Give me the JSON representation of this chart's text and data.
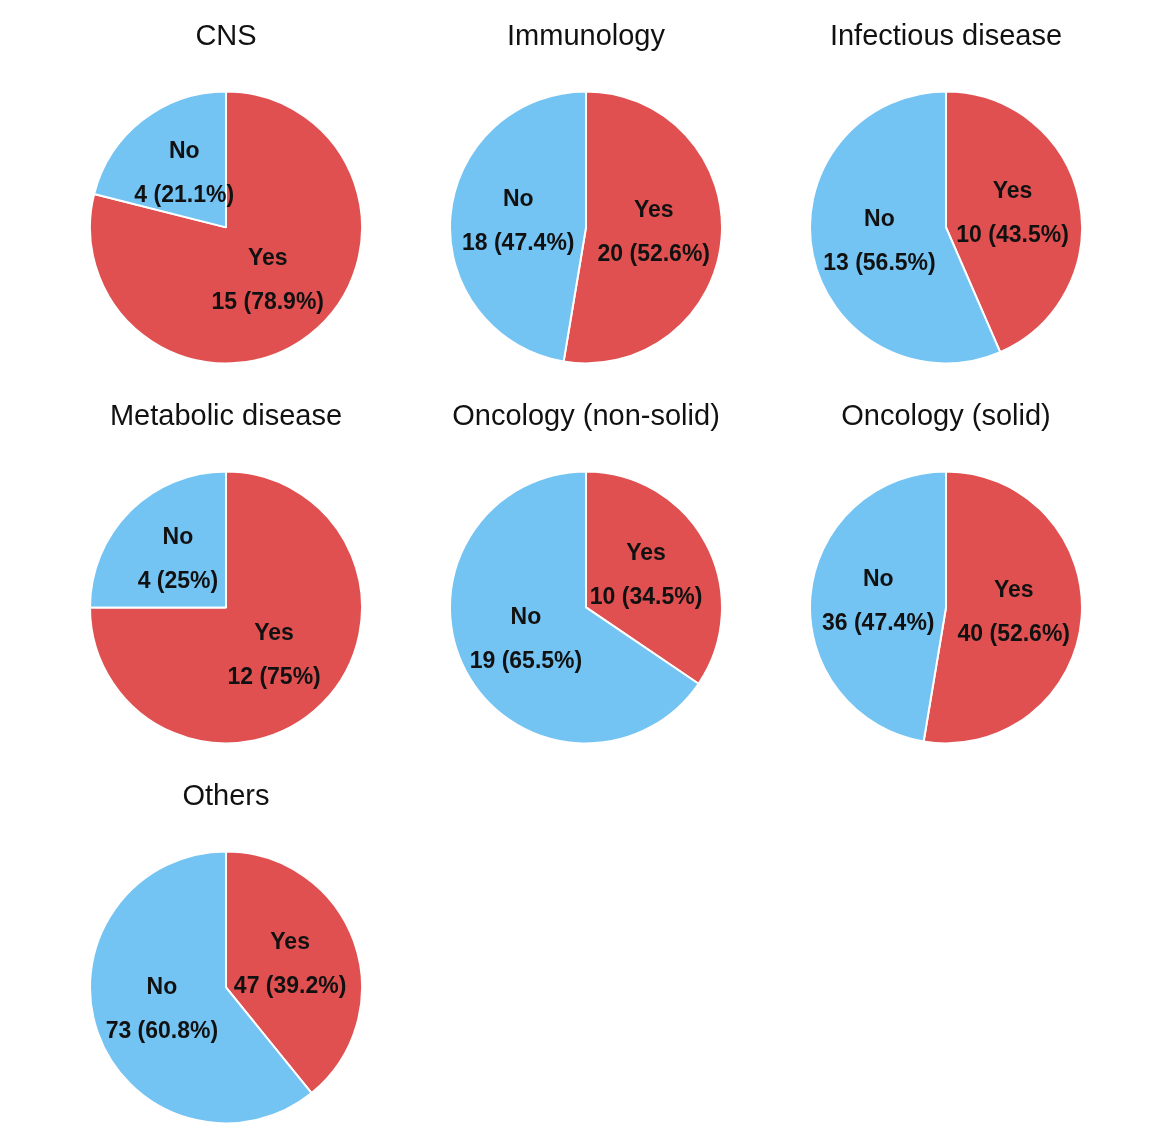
{
  "chart_data": [
    {
      "type": "pie",
      "title": "CNS",
      "categories": [
        "Yes",
        "No"
      ],
      "values": [
        15,
        4
      ],
      "value_labels": [
        "15 (78.9%)",
        "4 (21.1%)"
      ],
      "colors": [
        "#e05050",
        "#73c3f3"
      ]
    },
    {
      "type": "pie",
      "title": "Immunology",
      "categories": [
        "Yes",
        "No"
      ],
      "values": [
        20,
        18
      ],
      "value_labels": [
        "20 (52.6%)",
        "18 (47.4%)"
      ],
      "colors": [
        "#e05050",
        "#73c3f3"
      ]
    },
    {
      "type": "pie",
      "title": "Infectious disease",
      "categories": [
        "Yes",
        "No"
      ],
      "values": [
        10,
        13
      ],
      "value_labels": [
        "10 (43.5%)",
        "13 (56.5%)"
      ],
      "colors": [
        "#e05050",
        "#73c3f3"
      ]
    },
    {
      "type": "pie",
      "title": "Metabolic disease",
      "categories": [
        "Yes",
        "No"
      ],
      "values": [
        12,
        4
      ],
      "value_labels": [
        "12 (75%)",
        "4 (25%)"
      ],
      "colors": [
        "#e05050",
        "#73c3f3"
      ]
    },
    {
      "type": "pie",
      "title": "Oncology (non-solid)",
      "categories": [
        "Yes",
        "No"
      ],
      "values": [
        10,
        19
      ],
      "value_labels": [
        "10 (34.5%)",
        "19 (65.5%)"
      ],
      "colors": [
        "#e05050",
        "#73c3f3"
      ]
    },
    {
      "type": "pie",
      "title": "Oncology (solid)",
      "categories": [
        "Yes",
        "No"
      ],
      "values": [
        40,
        36
      ],
      "value_labels": [
        "40 (52.6%)",
        "36 (47.4%)"
      ],
      "colors": [
        "#e05050",
        "#73c3f3"
      ]
    },
    {
      "type": "pie",
      "title": "Others",
      "categories": [
        "Yes",
        "No"
      ],
      "values": [
        47,
        73
      ],
      "value_labels": [
        "47 (39.2%)",
        "73 (60.8%)"
      ],
      "colors": [
        "#e05050",
        "#73c3f3"
      ]
    }
  ]
}
